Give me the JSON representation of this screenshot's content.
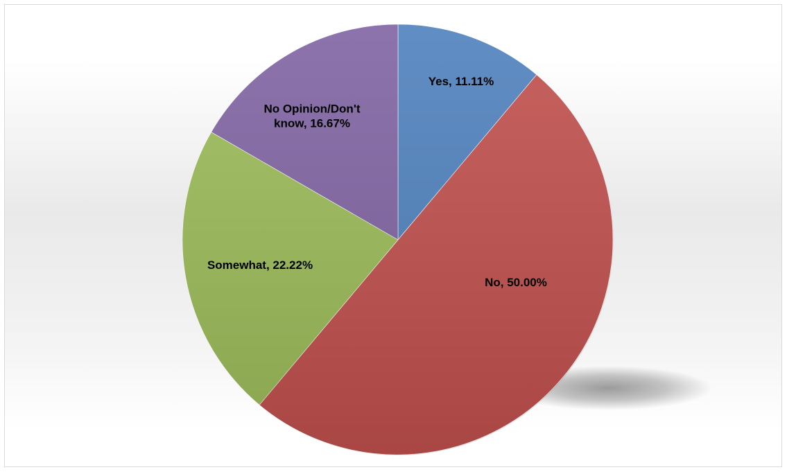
{
  "chart_data": {
    "type": "pie",
    "title": "",
    "categories": [
      "Yes",
      "No",
      "Somewhat",
      "No Opinion/Don't know"
    ],
    "values": [
      11.11,
      50.0,
      22.22,
      16.67
    ],
    "labels": [
      "Yes, 11.11%",
      "No, 50.00%",
      "Somewhat, 22.22%",
      "No Opinion/Don't know, 16.67%"
    ],
    "label_lines": [
      [
        "Yes, 11.11%"
      ],
      [
        "No, 50.00%"
      ],
      [
        "Somewhat, 22.22%"
      ],
      [
        "No Opinion/Don't",
        "know, 16.67%"
      ]
    ],
    "colors": [
      "#4f81bd",
      "#c0504d",
      "#9bbb59",
      "#8064a2"
    ],
    "start_angle": "12 o'clock",
    "direction": "clockwise",
    "legend": "none",
    "data_labels": "inside"
  }
}
